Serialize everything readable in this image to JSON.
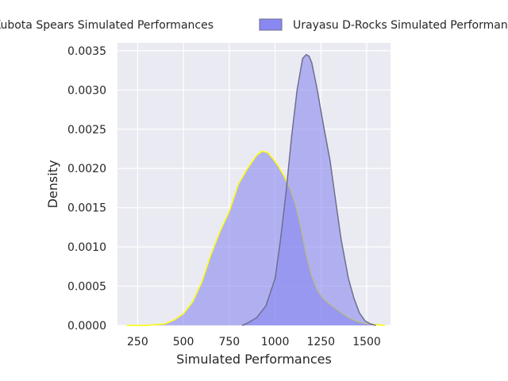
{
  "chart_data": {
    "type": "area",
    "title": "",
    "xlabel": "Simulated Performances",
    "ylabel": "Density",
    "xlim": [
      140,
      1630
    ],
    "ylim": [
      0,
      0.0036
    ],
    "xticks": [
      250,
      500,
      750,
      1000,
      1250,
      1500
    ],
    "yticks": [
      0.0,
      0.0005,
      0.001,
      0.0015,
      0.002,
      0.0025,
      0.003,
      0.0035
    ],
    "grid": true,
    "legend_position": "top",
    "series": [
      {
        "name": "Kubota Spears Simulated Performances",
        "fill_color": "#8888f0",
        "line_color": "#ffff00",
        "x": [
          190,
          300,
          400,
          450,
          500,
          550,
          600,
          650,
          700,
          750,
          800,
          850,
          900,
          930,
          960,
          990,
          1020,
          1050,
          1080,
          1110,
          1140,
          1170,
          1200,
          1230,
          1260,
          1300,
          1350,
          1400,
          1450,
          1500,
          1550,
          1600
        ],
        "y": [
          0.0,
          0.0,
          2e-05,
          7e-05,
          0.00015,
          0.0003,
          0.00055,
          0.0009,
          0.0012,
          0.00145,
          0.0018,
          0.002,
          0.00217,
          0.00222,
          0.0022,
          0.00212,
          0.00202,
          0.0019,
          0.00175,
          0.00155,
          0.00125,
          0.0009,
          0.00063,
          0.00045,
          0.00035,
          0.00027,
          0.00018,
          0.0001,
          5e-05,
          2e-05,
          1e-05,
          0.0
        ]
      },
      {
        "name": "Urayasu D-Rocks Simulated Performances",
        "fill_color": "#8888f0",
        "line_color": "#6e6e8e",
        "x": [
          820,
          850,
          900,
          950,
          1000,
          1030,
          1060,
          1090,
          1120,
          1150,
          1170,
          1185,
          1200,
          1230,
          1260,
          1300,
          1330,
          1360,
          1400,
          1430,
          1460,
          1490,
          1520,
          1550
        ],
        "y": [
          0.0,
          3e-05,
          0.0001,
          0.00025,
          0.0006,
          0.0011,
          0.0017,
          0.0024,
          0.003,
          0.0034,
          0.00345,
          0.00343,
          0.00335,
          0.003,
          0.0026,
          0.0021,
          0.0016,
          0.0011,
          0.0006,
          0.00035,
          0.00016,
          6e-05,
          2e-05,
          0.0
        ]
      }
    ]
  }
}
